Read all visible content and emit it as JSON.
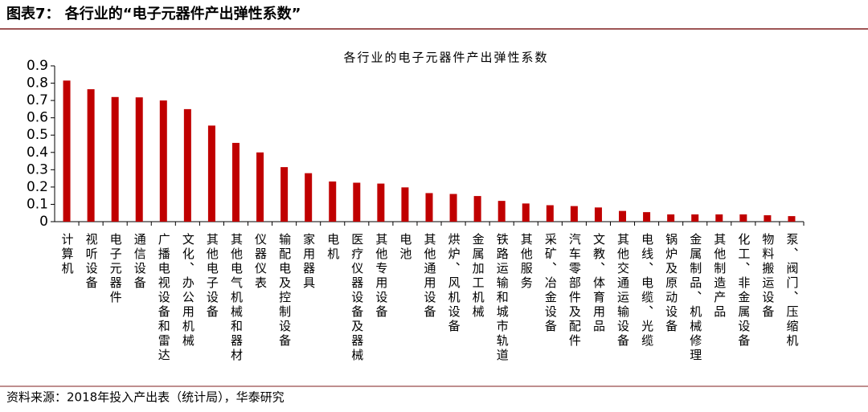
{
  "header": {
    "title": "图表7：  各行业的“电子元器件产出弹性系数”"
  },
  "chart_data": {
    "type": "bar",
    "title": "各行业的电子元器件产出弹性系数",
    "categories": [
      "计算机",
      "视听设备",
      "电子元器件",
      "通信设备",
      "广播电视设备和雷达",
      "文化、办公用机械",
      "其他电子设备",
      "其他电气机械和器材",
      "仪器仪表",
      "输配电及控制设备",
      "家用器具",
      "电机",
      "医疗仪器设备及器械",
      "其他专用设备",
      "电池",
      "其他通用设备",
      "烘炉、风机设备",
      "金属加工机械",
      "铁路运输和城市轨道",
      "其他服务",
      "采矿、冶金设备",
      "汽车零部件及配件",
      "文教、体育用品",
      "其他交通运输设备",
      "电线、电缆、光缆",
      "锅炉及原动设备",
      "金属制品、机械修理",
      "其他制造产品",
      "化工、非金属设备",
      "物料搬运设备",
      "泵、阀门、压缩机"
    ],
    "values": [
      0.815,
      0.765,
      0.72,
      0.718,
      0.7,
      0.65,
      0.555,
      0.455,
      0.4,
      0.315,
      0.28,
      0.232,
      0.225,
      0.22,
      0.198,
      0.165,
      0.16,
      0.148,
      0.12,
      0.105,
      0.095,
      0.09,
      0.082,
      0.062,
      0.055,
      0.042,
      0.042,
      0.042,
      0.042,
      0.037,
      0.032
    ],
    "color": "#c00000",
    "ylim": [
      0,
      0.9
    ],
    "yticks": [
      0,
      0.1,
      0.2,
      0.3,
      0.4,
      0.5,
      0.6,
      0.7,
      0.8,
      0.9
    ],
    "grid": false
  },
  "footer": {
    "source": "资料来源：2018年投入产出表（统计局），华泰研究"
  }
}
